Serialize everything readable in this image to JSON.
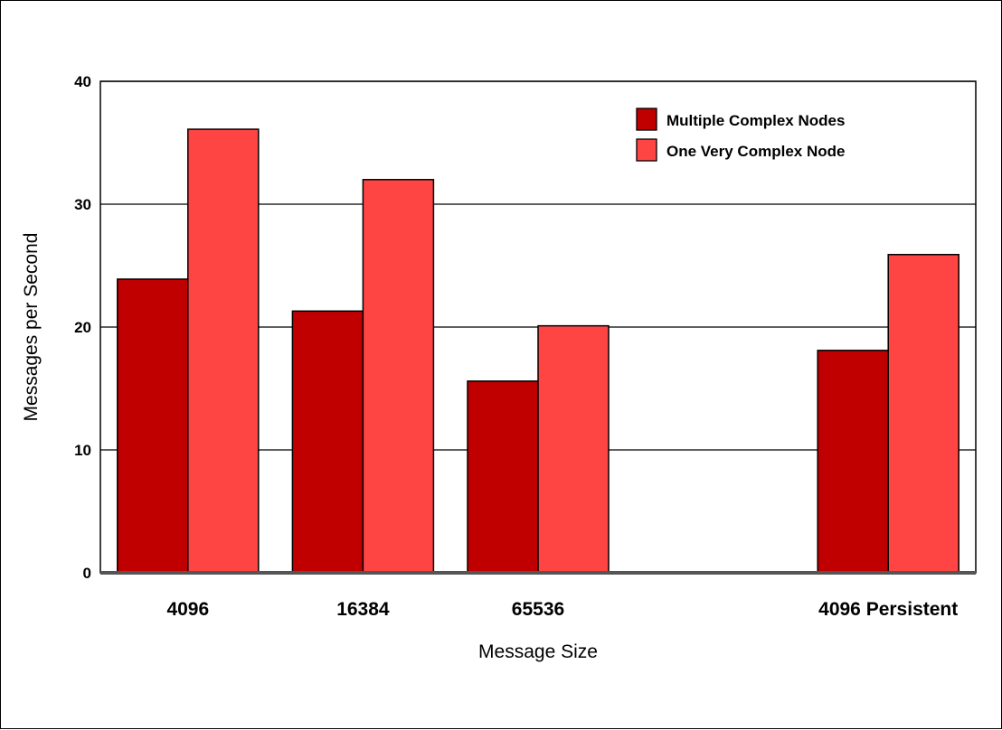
{
  "chart_data": {
    "type": "bar",
    "categories": [
      "4096",
      "16384",
      "65536",
      "",
      "4096 Persistent"
    ],
    "series": [
      {
        "name": "Multiple Complex Nodes",
        "values": [
          23.9,
          21.3,
          15.6,
          0,
          18.1
        ],
        "color": "#c00000"
      },
      {
        "name": "One Very Complex Node",
        "values": [
          36.1,
          32.0,
          20.1,
          0,
          25.9
        ],
        "color": "#ff4444"
      }
    ],
    "xlabel": "Message Size",
    "ylabel": "Messages per Second",
    "ylim": [
      0,
      40
    ],
    "yticks": [
      0,
      10,
      20,
      30,
      40
    ],
    "grid": true,
    "legend_position": "top-right"
  }
}
